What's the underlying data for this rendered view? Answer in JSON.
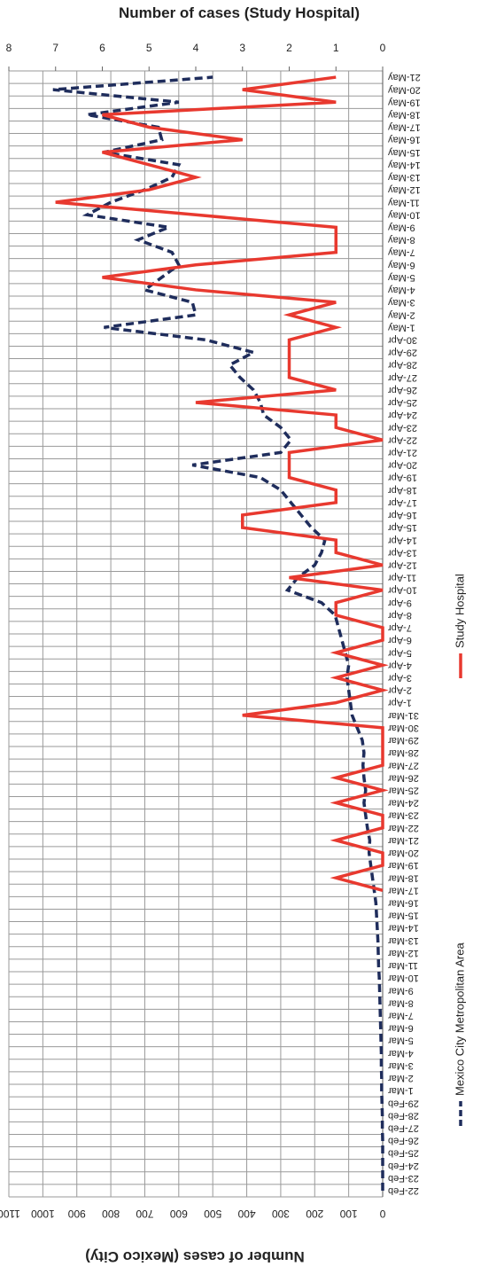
{
  "chart_data": {
    "type": "line",
    "title": "Number of cases (Study Hospital)",
    "y_label": "Number of cases (Mexico City)",
    "categories": [
      "22-Feb",
      "23-Feb",
      "24-Feb",
      "25-Feb",
      "26-Feb",
      "27-Feb",
      "28-Feb",
      "29-Feb",
      "1-Mar",
      "2-Mar",
      "3-Mar",
      "4-Mar",
      "5-Mar",
      "6-Mar",
      "7-Mar",
      "8-Mar",
      "9-Mar",
      "10-Mar",
      "11-Mar",
      "12-Mar",
      "13-Mar",
      "14-Mar",
      "15-Mar",
      "16-Mar",
      "17-Mar",
      "18-Mar",
      "19-Mar",
      "20-Mar",
      "21-Mar",
      "22-Mar",
      "23-Mar",
      "24-Mar",
      "25-Mar",
      "26-Mar",
      "27-Mar",
      "28-Mar",
      "29-Mar",
      "30-Mar",
      "31-Mar",
      "1-Apr",
      "2-Apr",
      "3-Apr",
      "4-Apr",
      "5-Apr",
      "6-Apr",
      "7-Apr",
      "8-Apr",
      "9-Apr",
      "10-Apr",
      "11-Apr",
      "12-Apr",
      "13-Apr",
      "14-Apr",
      "15-Apr",
      "16-Apr",
      "17-Apr",
      "18-Apr",
      "19-Apr",
      "20-Apr",
      "21-Apr",
      "22-Apr",
      "23-Apr",
      "24-Apr",
      "25-Apr",
      "26-Apr",
      "27-Apr",
      "28-Apr",
      "29-Apr",
      "30-Apr",
      "1-May",
      "2-May",
      "3-May",
      "4-May",
      "5-May",
      "6-May",
      "7-May",
      "8-May",
      "9-May",
      "10-May",
      "11-May",
      "12-May",
      "13-May",
      "14-May",
      "15-May",
      "16-May",
      "17-May",
      "18-May",
      "19-May",
      "20-May",
      "21-May"
    ],
    "series": [
      {
        "name": "Mexico City Metropolitan Area",
        "color": "#1f2d5c",
        "line_style": "dashed",
        "axis": "y",
        "values": [
          0,
          0,
          0,
          0,
          0,
          1,
          1,
          2,
          3,
          3,
          4,
          4,
          5,
          6,
          7,
          8,
          9,
          10,
          12,
          13,
          14,
          16,
          18,
          20,
          25,
          30,
          35,
          40,
          38,
          45,
          50,
          55,
          50,
          55,
          58,
          55,
          60,
          75,
          90,
          95,
          100,
          105,
          100,
          110,
          120,
          130,
          140,
          180,
          280,
          250,
          200,
          180,
          170,
          210,
          240,
          270,
          300,
          360,
          560,
          300,
          270,
          300,
          350,
          360,
          380,
          420,
          450,
          380,
          520,
          820,
          550,
          560,
          700,
          650,
          600,
          620,
          720,
          630,
          870,
          800,
          700,
          620,
          600,
          820,
          650,
          660,
          870,
          600,
          970,
          500
        ]
      },
      {
        "name": "Study Hospital",
        "color": "#e8392f",
        "line_style": "solid",
        "axis": "y2",
        "values": [
          null,
          null,
          null,
          null,
          null,
          null,
          null,
          null,
          null,
          null,
          null,
          null,
          null,
          null,
          null,
          null,
          null,
          null,
          null,
          null,
          null,
          null,
          null,
          null,
          0,
          1,
          0,
          0,
          1,
          0,
          0,
          1,
          0,
          1,
          0,
          0,
          0,
          0,
          3,
          1,
          0,
          1,
          0,
          1,
          0,
          0,
          1,
          1,
          0,
          2,
          0,
          1,
          1,
          3,
          3,
          1,
          1,
          2,
          2,
          2,
          0,
          1,
          1,
          4,
          1,
          2,
          2,
          2,
          2,
          1,
          2,
          1,
          4,
          6,
          4,
          1,
          1,
          1,
          4,
          7,
          5,
          4,
          5,
          6,
          3,
          5,
          6,
          1,
          3,
          1
        ]
      }
    ],
    "ylim": [
      0,
      1100
    ],
    "yticks": [
      0,
      100,
      200,
      300,
      400,
      500,
      600,
      700,
      800,
      900,
      1000,
      1100
    ],
    "y2lim": [
      0,
      8
    ],
    "y2ticks": [
      0,
      1,
      2,
      3,
      4,
      5,
      6,
      7,
      8
    ],
    "grid": true
  }
}
